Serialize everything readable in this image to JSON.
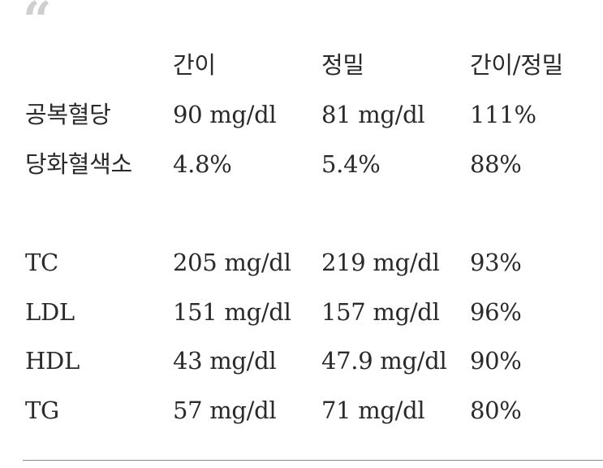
{
  "quote_mark": "“",
  "header": {
    "label": "",
    "simple": "간이",
    "precise": "정밀",
    "ratio": "간이/정밀"
  },
  "group1": [
    {
      "label": "공복혈당",
      "simple": "90 mg/dl",
      "precise": "81 mg/dl",
      "ratio": "111%"
    },
    {
      "label": "당화혈색소",
      "simple": "4.8%",
      "precise": "5.4%",
      "ratio": "88%"
    }
  ],
  "group2": [
    {
      "label": "TC",
      "simple": "205 mg/dl",
      "precise": "219 mg/dl",
      "ratio": "93%"
    },
    {
      "label": "LDL",
      "simple": "151 mg/dl",
      "precise": "157 mg/dl",
      "ratio": "96%"
    },
    {
      "label": "HDL",
      "simple": "43 mg/dl",
      "precise": "47.9 mg/dl",
      "ratio": "90%"
    },
    {
      "label": "TG",
      "simple": "57 mg/dl",
      "precise": "71 mg/dl",
      "ratio": "80%"
    }
  ]
}
